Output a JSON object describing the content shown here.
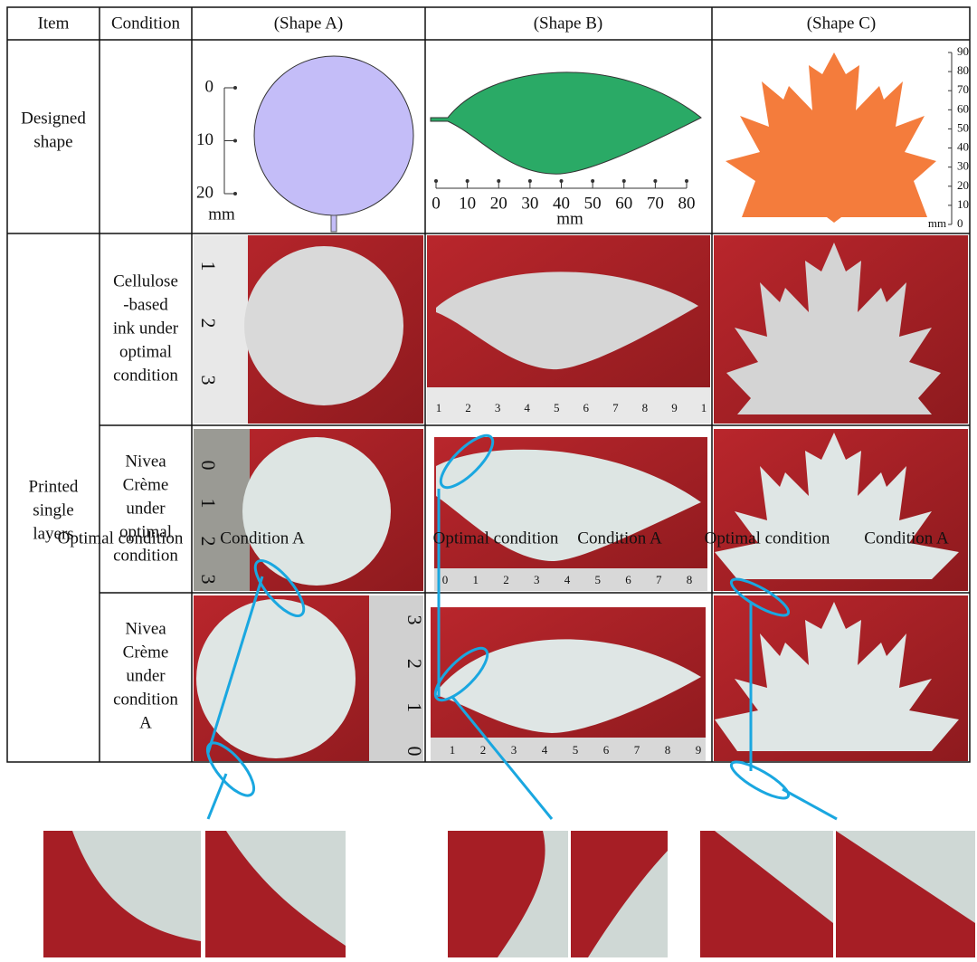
{
  "table": {
    "header": [
      "Item",
      "Condition",
      "(Shape A)",
      "(Shape B)",
      "(Shape C)"
    ],
    "designed_item": [
      "Designed",
      "shape"
    ],
    "printed_item": [
      "Printed",
      "single",
      "layers"
    ],
    "conditions": [
      [
        "Cellulose",
        "-based",
        "ink under",
        "optimal",
        "condition"
      ],
      [
        "Nivea",
        "Crème",
        "under",
        "optimal",
        "condition"
      ],
      [
        "Nivea",
        "Crème",
        "under",
        "condition",
        "A"
      ]
    ]
  },
  "scales": {
    "shape_a": {
      "ticks": [
        0,
        10,
        20
      ],
      "unit": "mm"
    },
    "shape_b": {
      "ticks": [
        0,
        10,
        20,
        30,
        40,
        50,
        60,
        70,
        80
      ],
      "unit": "mm"
    },
    "shape_c": {
      "ticks": [
        0,
        10,
        20,
        30,
        40,
        50,
        60,
        70,
        80,
        90
      ],
      "unit": "mm"
    }
  },
  "photo_rulers": {
    "cellulose_a": [
      1,
      2,
      3
    ],
    "cellulose_b": [
      1,
      2,
      3,
      4,
      5,
      6,
      7,
      8,
      9,
      1
    ],
    "nivea_optimal_a": [
      0,
      1,
      2,
      3
    ],
    "nivea_optimal_b": [
      0,
      1,
      2,
      3,
      4,
      5,
      6,
      7,
      8
    ],
    "condition_a_a": [
      3,
      2,
      1,
      0
    ],
    "condition_a_b": [
      1,
      2,
      3,
      4,
      5,
      6,
      7,
      8,
      9
    ]
  },
  "insets": [
    {
      "labels": [
        "Optimal condition",
        "Condition A"
      ]
    },
    {
      "labels": [
        "Optimal condition",
        "Condition A"
      ]
    },
    {
      "labels": [
        "Optimal condition",
        "Condition A"
      ]
    }
  ]
}
